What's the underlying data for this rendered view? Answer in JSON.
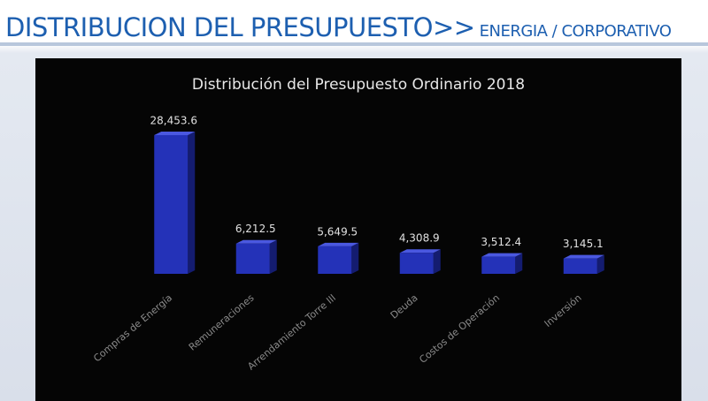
{
  "header": {
    "title": "DISTRIBUCION DEL PRESUPUESTO>>",
    "subtitle": "ENERGIA / CORPORATIVO"
  },
  "chart_data": {
    "type": "bar",
    "title": "Distribución del Presupuesto Ordinario 2018",
    "categories": [
      "Compras de Energía",
      "Remuneraciones",
      "Arrendamiento Torre III",
      "Deuda",
      "Costos de Operación",
      "Inversión"
    ],
    "values": [
      28453.6,
      6212.5,
      5649.5,
      4308.9,
      3512.4,
      3145.1
    ],
    "value_labels": [
      "28,453.6",
      "6,212.5",
      "5,649.5",
      "4,308.9",
      "3,512.4",
      "3,145.1"
    ],
    "color": "#2432b8"
  }
}
